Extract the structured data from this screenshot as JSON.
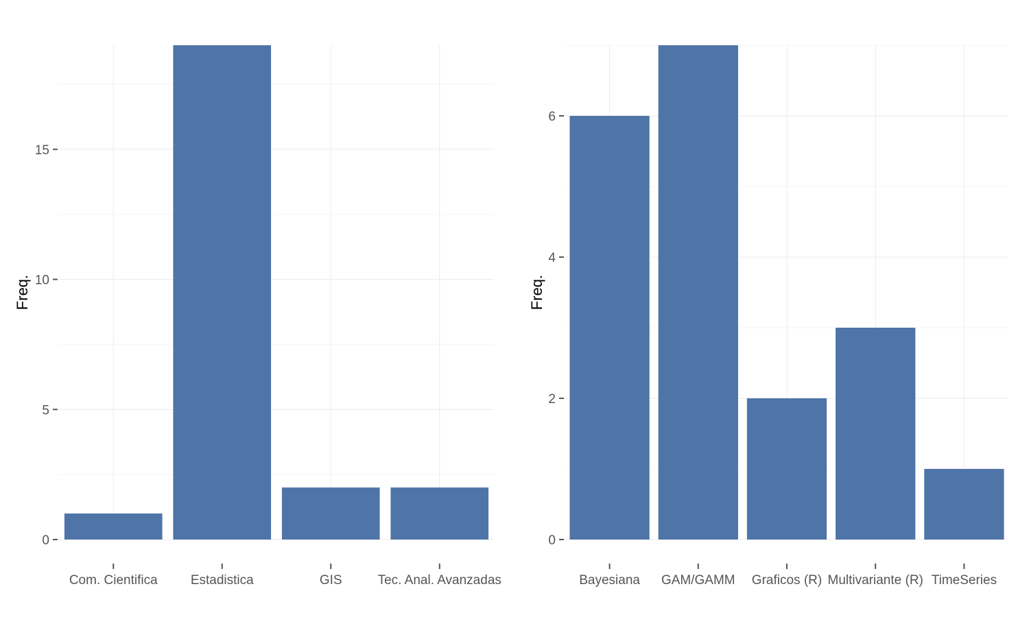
{
  "chart_data": [
    {
      "type": "bar",
      "ylabel": "Freq.",
      "xlabel": "",
      "categories": [
        "Com. Cientifica",
        "Estadistica",
        "GIS",
        "Tec. Anal. Avanzadas"
      ],
      "values": [
        1,
        19,
        2,
        2
      ],
      "yticks": [
        0,
        5,
        10,
        15
      ],
      "ytick_labels": [
        "0",
        "5",
        "10",
        "15"
      ],
      "ylim": [
        0,
        19
      ],
      "grid": true,
      "color": "#4f74a8"
    },
    {
      "type": "bar",
      "ylabel": "Freq.",
      "xlabel": "",
      "categories": [
        "Bayesiana",
        "GAM/GAMM",
        "Graficos (R)",
        "Multivariante (R)",
        "TimeSeries"
      ],
      "values": [
        6,
        7,
        2,
        3,
        1
      ],
      "yticks": [
        0,
        2,
        4,
        6
      ],
      "ytick_labels": [
        "0",
        "2",
        "4",
        "6"
      ],
      "ylim": [
        0,
        7
      ],
      "grid": true,
      "color": "#4f74a8"
    }
  ]
}
